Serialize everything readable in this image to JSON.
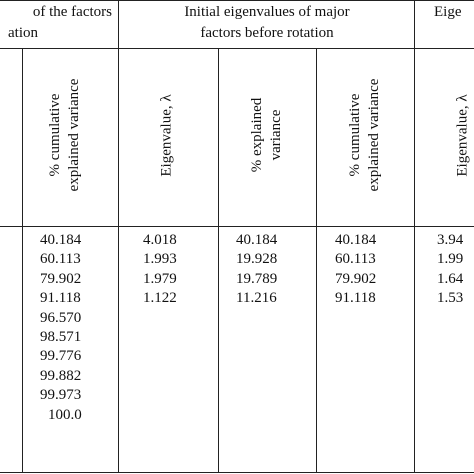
{
  "table": {
    "groups": [
      {
        "lines": [
          "of the factors",
          "ation"
        ]
      },
      {
        "lines": [
          "Initial eigenvalues of major",
          "factors before rotation"
        ]
      },
      {
        "lines": [
          "Eige"
        ]
      }
    ],
    "subheaders": {
      "cumulative_a": [
        "% cumulative",
        "explained variance"
      ],
      "eigenvalue_b": "Eigenvalue, λ",
      "explained_b": [
        "% explained",
        "variance"
      ],
      "cumulative_b": [
        "% cumulative",
        "explained variance"
      ],
      "eigenvalue_c": "Eigenvalue, λ"
    },
    "columns": {
      "cumulative_a": [
        "40.184",
        "60.113",
        "79.902",
        "91.118",
        "96.570",
        "98.571",
        "99.776",
        "99.882",
        "99.973",
        "100.0"
      ],
      "eigenvalue_b": [
        "4.018",
        "1.993",
        "1.979",
        "1.122"
      ],
      "explained_b": [
        "40.184",
        "19.928",
        "19.789",
        "11.216"
      ],
      "cumulative_b": [
        "40.184",
        "60.113",
        "79.902",
        "91.118"
      ],
      "eigenvalue_c": [
        "3.94",
        "1.99",
        "1.64",
        "1.53"
      ]
    }
  }
}
